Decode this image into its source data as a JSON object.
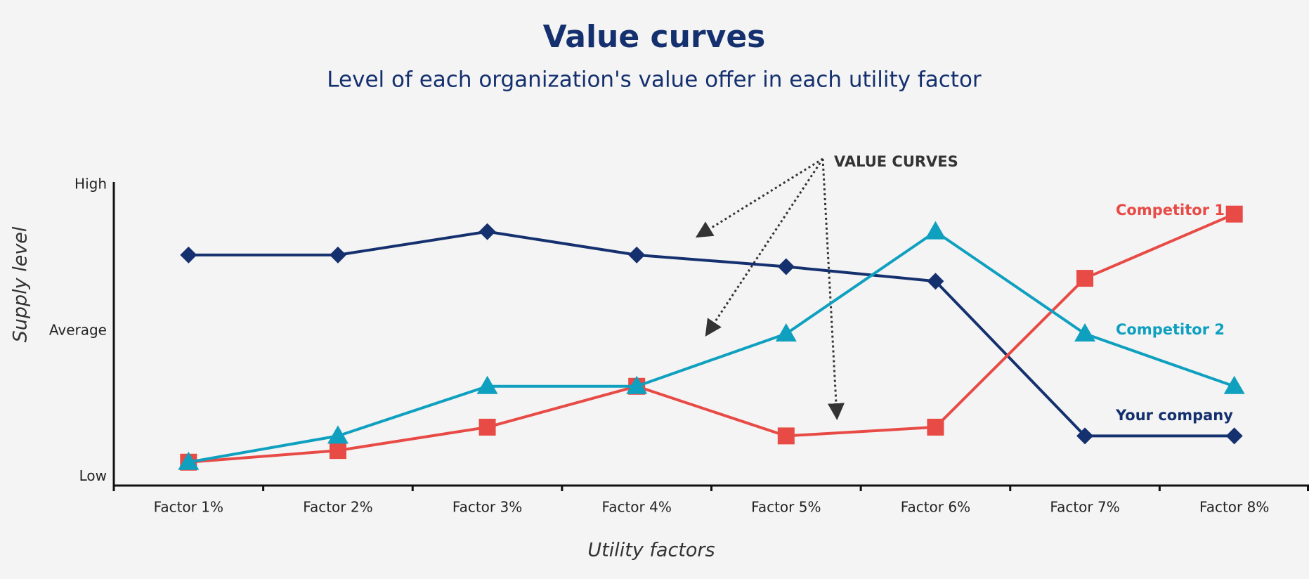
{
  "chart_data": {
    "type": "line",
    "title": "Value curves",
    "subtitle": "Level of each organization's value offer in each utility factor",
    "x_label": "Utility factors",
    "y_label": "Supply level",
    "annotation": "VALUE CURVES",
    "categories": [
      "Factor 1%",
      "Factor 2%",
      "Factor 3%",
      "Factor 4%",
      "Factor 5%",
      "Factor 6%",
      "Factor 7%",
      "Factor 8%"
    ],
    "series": [
      {
        "name": "Your company",
        "color": "#15306e",
        "marker": "diamond",
        "values": [
          76,
          76,
          84,
          76,
          72,
          67,
          14,
          14
        ]
      },
      {
        "name": "Competitor 1",
        "color": "#e84a45",
        "marker": "square",
        "values": [
          5,
          9,
          17,
          31,
          14,
          17,
          68,
          90
        ]
      },
      {
        "name": "Competitor 2",
        "color": "#0fa0c0",
        "marker": "triangle",
        "values": [
          5,
          14,
          31,
          31,
          49,
          84,
          49,
          31
        ]
      }
    ],
    "ylim": [
      -3,
      101
    ],
    "yticks": [
      {
        "value": 0,
        "label": "Low"
      },
      {
        "value": 50,
        "label": "Average"
      },
      {
        "value": 100,
        "label": "High"
      }
    ],
    "grid": false
  }
}
